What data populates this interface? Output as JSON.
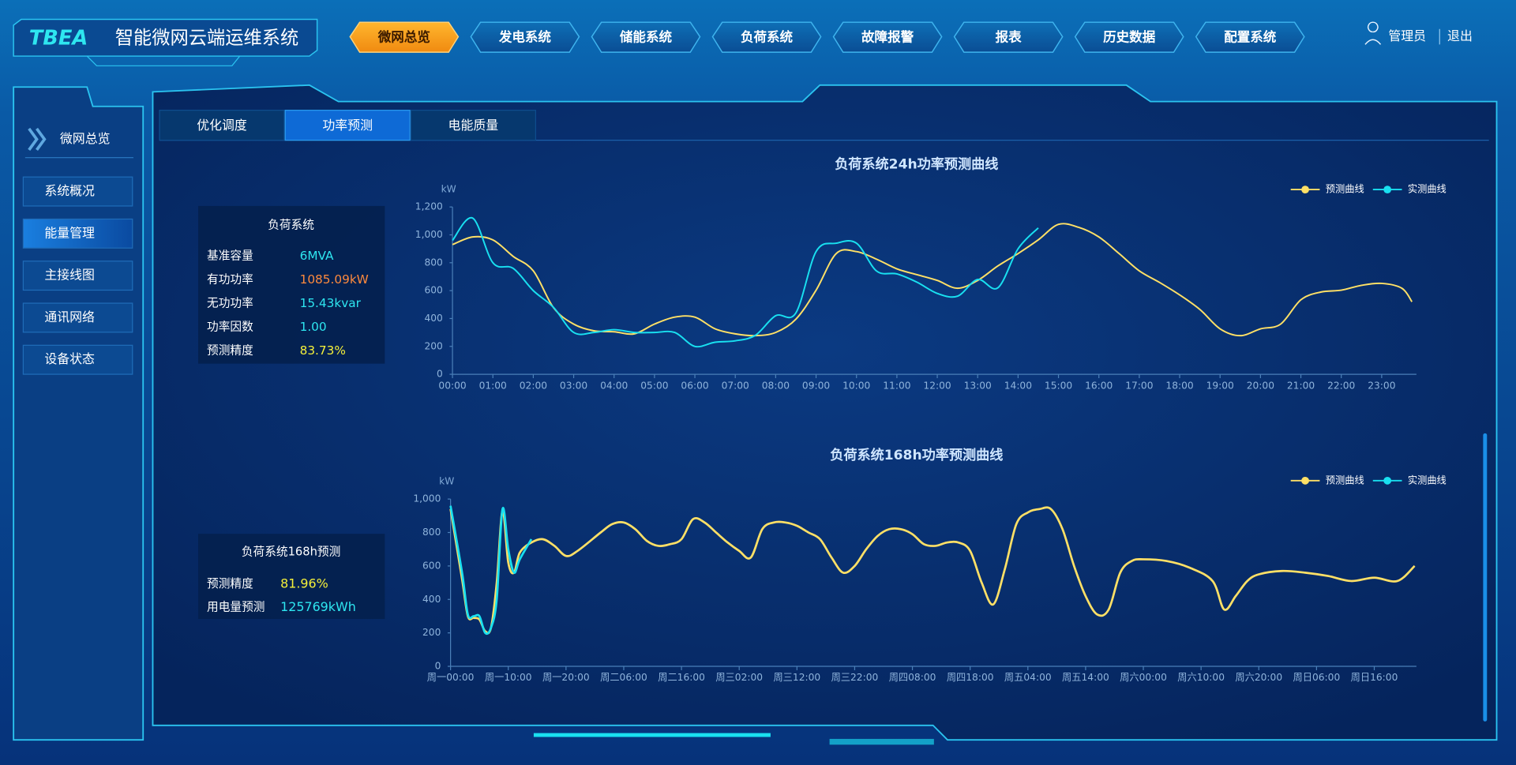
{
  "header": {
    "logo": "TBEA",
    "title": "智能微网云端运维系统",
    "nav": [
      "微网总览",
      "发电系统",
      "储能系统",
      "负荷系统",
      "故障报警",
      "报表",
      "历史数据",
      "配置系统"
    ],
    "user": "管理员",
    "logout": "退出"
  },
  "sidebar": {
    "title": "微网总览",
    "items": [
      "系统概况",
      "能量管理",
      "主接线图",
      "通讯网络",
      "设备状态"
    ]
  },
  "tabs": [
    "优化调度",
    "功率预测",
    "电能质量"
  ],
  "panels": [
    {
      "title": "负荷系统",
      "rows": [
        {
          "label": "基准容量",
          "value": "6MVA",
          "color": "#2ee6f0"
        },
        {
          "label": "有功功率",
          "value": "1085.09kW",
          "color": "#ff8a3d"
        },
        {
          "label": "无功功率",
          "value": "15.43kvar",
          "color": "#2ee6f0"
        },
        {
          "label": "功率因数",
          "value": "1.00",
          "color": "#2ee6f0"
        },
        {
          "label": "预测精度",
          "value": "83.73%",
          "color": "#f5f03a"
        }
      ]
    },
    {
      "title": "负荷系统168h预测",
      "rows": [
        {
          "label": "预测精度",
          "value": "81.96%",
          "color": "#f5f03a"
        },
        {
          "label": "用电量预测",
          "value": "125769kWh",
          "color": "#2ee6f0"
        }
      ]
    }
  ],
  "chart_data": [
    {
      "type": "line",
      "title": "负荷系统24h功率预测曲线",
      "y_label": "kW",
      "x": [
        0,
        0.5,
        1,
        1.5,
        2,
        2.5,
        3,
        3.5,
        4,
        4.5,
        5,
        5.5,
        6,
        6.5,
        7,
        7.5,
        8,
        8.5,
        9,
        9.5,
        10,
        10.5,
        11,
        11.5,
        12,
        12.5,
        13,
        13.5,
        14,
        14.5,
        15,
        15.5,
        16,
        16.5,
        17,
        17.5,
        18,
        18.5,
        19,
        19.5,
        20,
        20.5,
        21,
        21.5,
        22,
        22.5,
        23,
        23.5,
        23.75
      ],
      "xlim": [
        0,
        23.86
      ],
      "xticks": [
        {
          "value": 0,
          "label": "00:00"
        },
        {
          "value": 1,
          "label": "01:00"
        },
        {
          "value": 2,
          "label": "02:00"
        },
        {
          "value": 3,
          "label": "03:00"
        },
        {
          "value": 4,
          "label": "04:00"
        },
        {
          "value": 5,
          "label": "05:00"
        },
        {
          "value": 6,
          "label": "06:00"
        },
        {
          "value": 7,
          "label": "07:00"
        },
        {
          "value": 8,
          "label": "08:00"
        },
        {
          "value": 9,
          "label": "09:00"
        },
        {
          "value": 10,
          "label": "10:00"
        },
        {
          "value": 11,
          "label": "11:00"
        },
        {
          "value": 12,
          "label": "12:00"
        },
        {
          "value": 13,
          "label": "13:00"
        },
        {
          "value": 14,
          "label": "14:00"
        },
        {
          "value": 15,
          "label": "15:00"
        },
        {
          "value": 16,
          "label": "16:00"
        },
        {
          "value": 17,
          "label": "17:00"
        },
        {
          "value": 18,
          "label": "18:00"
        },
        {
          "value": 19,
          "label": "19:00"
        },
        {
          "value": 20,
          "label": "20:00"
        },
        {
          "value": 21,
          "label": "21:00"
        },
        {
          "value": 22,
          "label": "22:00"
        },
        {
          "value": 23,
          "label": "23:00"
        }
      ],
      "ylim": [
        0,
        1200
      ],
      "yticks": [
        0,
        200,
        400,
        600,
        800,
        {
          "value": 1000,
          "label": "1,000"
        },
        {
          "value": 1200,
          "label": "1,200"
        }
      ],
      "legend": "top-right",
      "series": [
        {
          "name": "预测曲线",
          "color": "#ffe066",
          "values": [
            930,
            985,
            964,
            846,
            742,
            478,
            360,
            312,
            305,
            290,
            360,
            410,
            410,
            326,
            290,
            277,
            300,
            395,
            603,
            866,
            880,
            825,
            756,
            714,
            673,
            617,
            673,
            777,
            866,
            964,
            1075,
            1054,
            985,
            866,
            742,
            659,
            569,
            465,
            326,
            277,
            326,
            360,
            534,
            590,
            603,
            638,
            652,
            617,
            520
          ]
        },
        {
          "name": "实测曲线",
          "color": "#19e0f0",
          "values": [
            960,
            1120,
            800,
            760,
            600,
            480,
            300,
            300,
            320,
            300,
            300,
            300,
            200,
            230,
            240,
            280,
            420,
            440,
            880,
            940,
            940,
            740,
            720,
            660,
            580,
            560,
            680,
            620,
            900,
            1050,
            null,
            null,
            null,
            null,
            null,
            null,
            null,
            null,
            null,
            null,
            null,
            null,
            null,
            null,
            null,
            null,
            null,
            null,
            null
          ]
        }
      ]
    },
    {
      "type": "line",
      "title": "负荷系统168h功率预测曲线",
      "y_label": "kW",
      "x": [
        0,
        2,
        3,
        4,
        5,
        6,
        7,
        8,
        9,
        10,
        11,
        12,
        14,
        16,
        18,
        20,
        22,
        26,
        28,
        30,
        32,
        34,
        36,
        38,
        40,
        42,
        44,
        46,
        48,
        50,
        52,
        54,
        56,
        58,
        60,
        62,
        64,
        66,
        68,
        70,
        72,
        74,
        76,
        78,
        80,
        82,
        84,
        86,
        88,
        90,
        92,
        94,
        96,
        98,
        100,
        102,
        104,
        106,
        108,
        110,
        112,
        114,
        116,
        118,
        120,
        124,
        128,
        132,
        134,
        136,
        138,
        140,
        144,
        148,
        152,
        156,
        160,
        164,
        167
      ],
      "xlim": [
        0,
        167.3
      ],
      "xticks": [
        {
          "value": 0,
          "label": "周一00:00"
        },
        {
          "value": 10,
          "label": "周一10:00"
        },
        {
          "value": 20,
          "label": "周一20:00"
        },
        {
          "value": 30,
          "label": "周二06:00"
        },
        {
          "value": 40,
          "label": "周二16:00"
        },
        {
          "value": 50,
          "label": "周三02:00"
        },
        {
          "value": 60,
          "label": "周三12:00"
        },
        {
          "value": 70,
          "label": "周三22:00"
        },
        {
          "value": 80,
          "label": "周四08:00"
        },
        {
          "value": 90,
          "label": "周四18:00"
        },
        {
          "value": 100,
          "label": "周五04:00"
        },
        {
          "value": 110,
          "label": "周五14:00"
        },
        {
          "value": 120,
          "label": "周六00:00"
        },
        {
          "value": 130,
          "label": "周六10:00"
        },
        {
          "value": 140,
          "label": "周六20:00"
        },
        {
          "value": 150,
          "label": "周日06:00"
        },
        {
          "value": 160,
          "label": "周日16:00"
        }
      ],
      "ylim": [
        0,
        1000
      ],
      "yticks": [
        0,
        200,
        400,
        600,
        800,
        {
          "value": 1000,
          "label": "1,000"
        }
      ],
      "legend": "top-right",
      "series": [
        {
          "name": "预测曲线",
          "color": "#ffe066",
          "values": [
            940,
            520,
            300,
            290,
            280,
            210,
            230,
            500,
            930,
            620,
            560,
            680,
            740,
            760,
            720,
            660,
            690,
            800,
            850,
            860,
            820,
            750,
            720,
            730,
            760,
            880,
            860,
            800,
            740,
            690,
            650,
            820,
            860,
            860,
            840,
            800,
            760,
            650,
            560,
            600,
            700,
            780,
            820,
            820,
            790,
            730,
            720,
            740,
            740,
            690,
            500,
            370,
            580,
            850,
            920,
            940,
            940,
            820,
            600,
            420,
            310,
            340,
            560,
            630,
            640,
            630,
            590,
            510,
            340,
            420,
            510,
            550,
            570,
            560,
            540,
            510,
            530,
            510,
            600
          ]
        },
        {
          "name": "实测曲线",
          "color": "#19e0f0",
          "values": [
            960,
            560,
            310,
            300,
            300,
            200,
            230,
            400,
            940,
            700,
            560,
            640,
            760,
            null,
            null,
            null,
            null,
            null,
            null,
            null,
            null,
            null,
            null,
            null,
            null,
            null,
            null,
            null,
            null,
            null,
            null,
            null,
            null,
            null,
            null,
            null,
            null,
            null,
            null,
            null,
            null,
            null,
            null,
            null,
            null,
            null,
            null,
            null,
            null,
            null,
            null,
            null,
            null,
            null,
            null,
            null,
            null,
            null,
            null,
            null,
            null,
            null,
            null,
            null,
            null,
            null,
            null,
            null,
            null,
            null,
            null,
            null,
            null,
            null,
            null,
            null,
            null,
            null,
            null
          ]
        }
      ]
    }
  ]
}
